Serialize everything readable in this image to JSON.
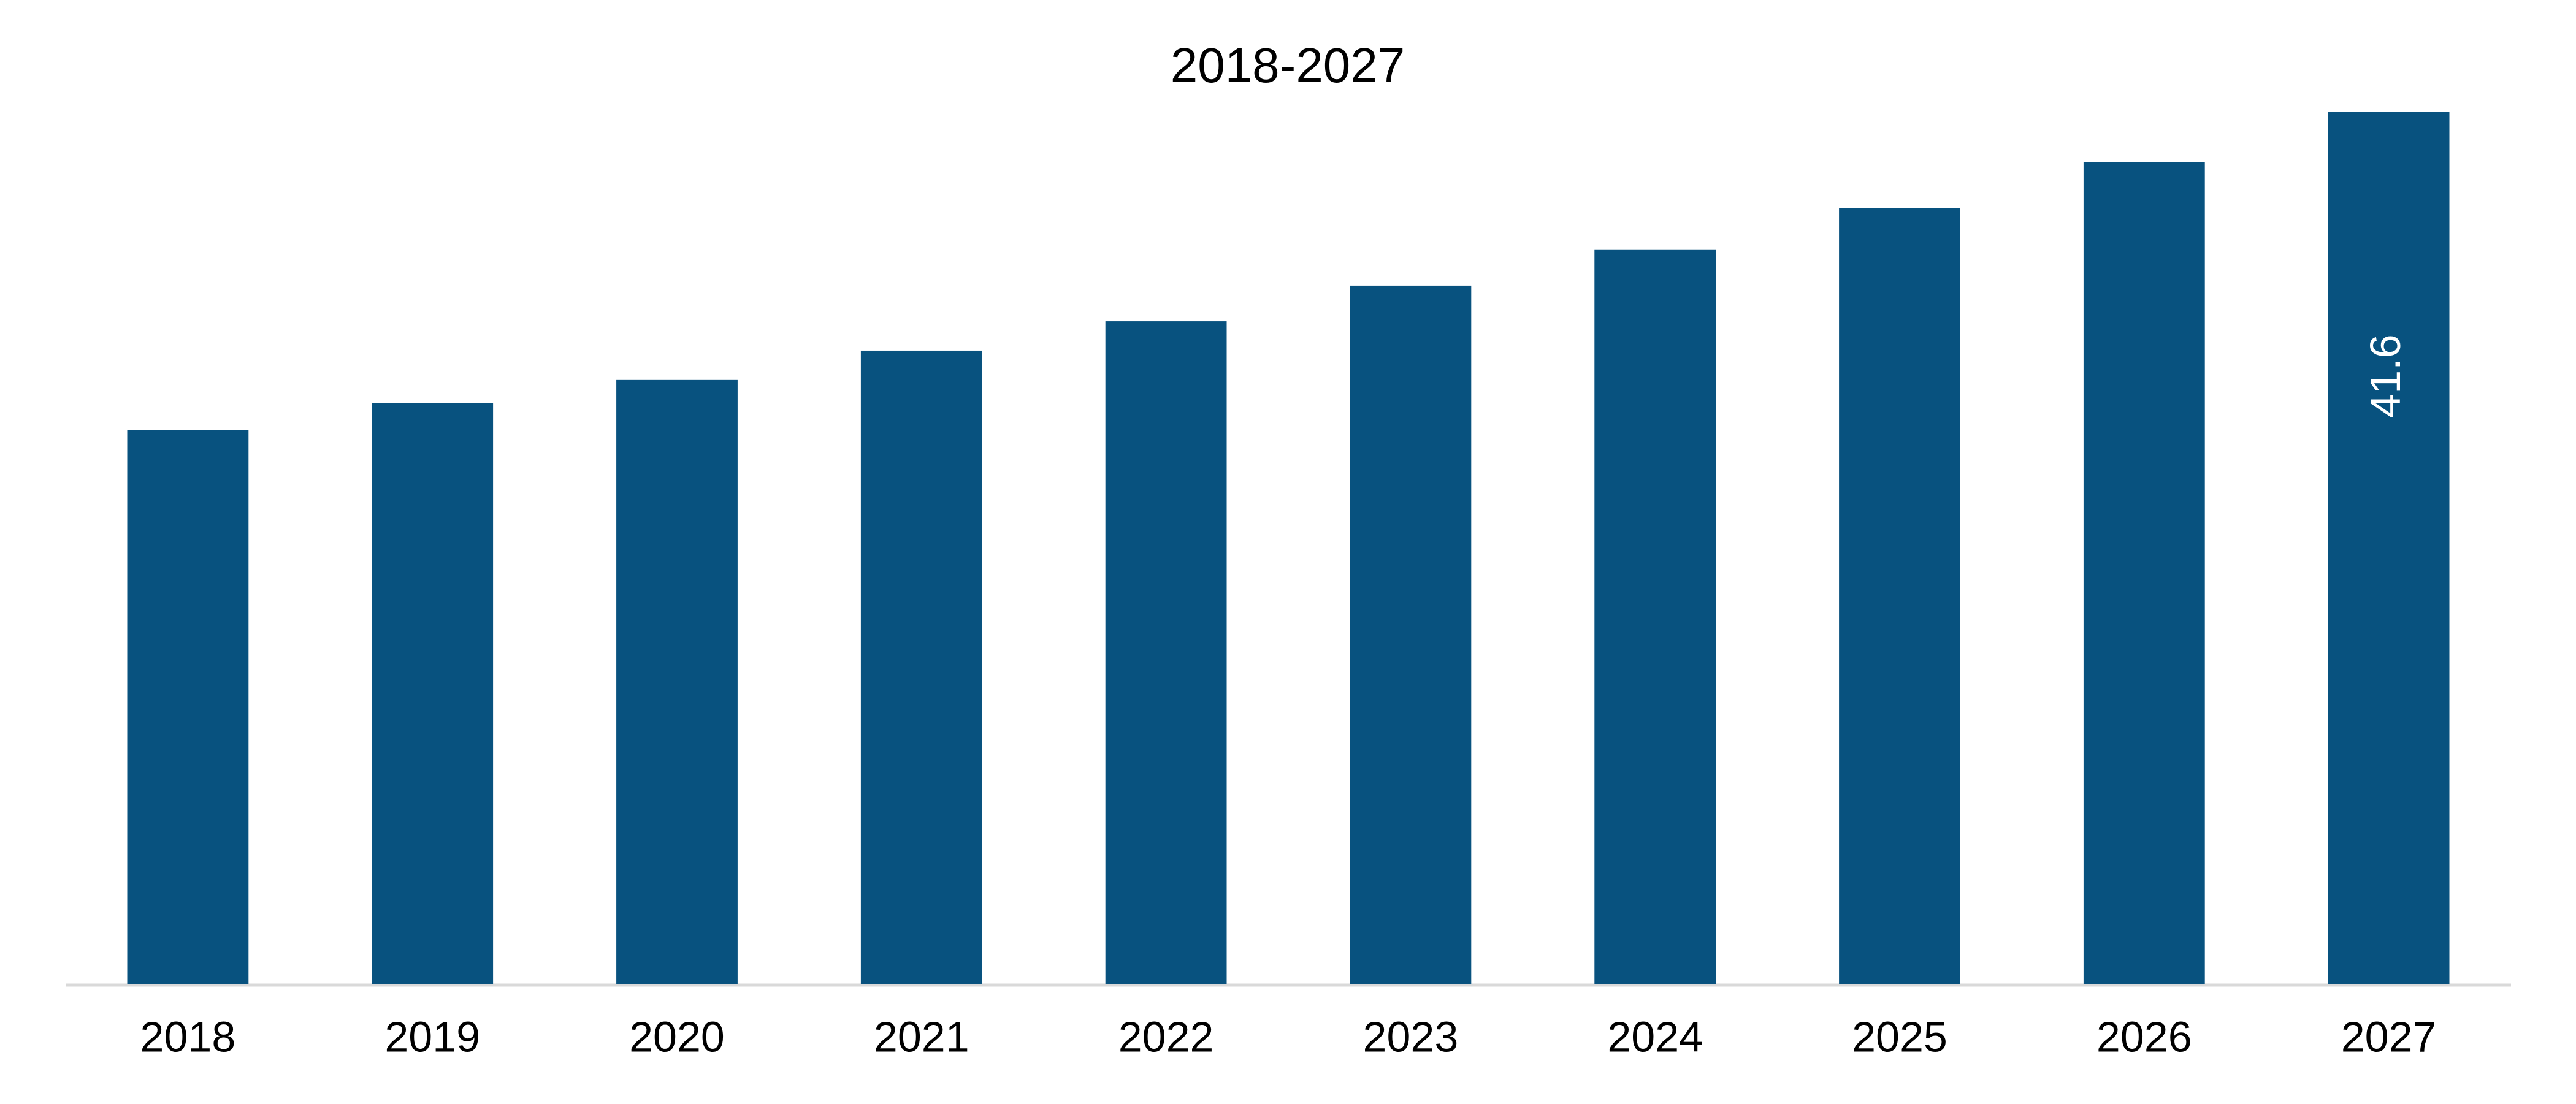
{
  "chart_data": {
    "type": "bar",
    "title": "2018-2027",
    "categories": [
      "2018",
      "2019",
      "2020",
      "2021",
      "2022",
      "2023",
      "2024",
      "2025",
      "2026",
      "2027"
    ],
    "values": [
      26.4,
      27.7,
      28.8,
      30.2,
      31.6,
      33.3,
      35.0,
      37.0,
      39.2,
      41.6
    ],
    "value_labels": [
      null,
      null,
      null,
      null,
      null,
      null,
      null,
      null,
      null,
      "41.6"
    ],
    "color": "#08527f",
    "ylim": [
      0,
      41.6
    ]
  }
}
